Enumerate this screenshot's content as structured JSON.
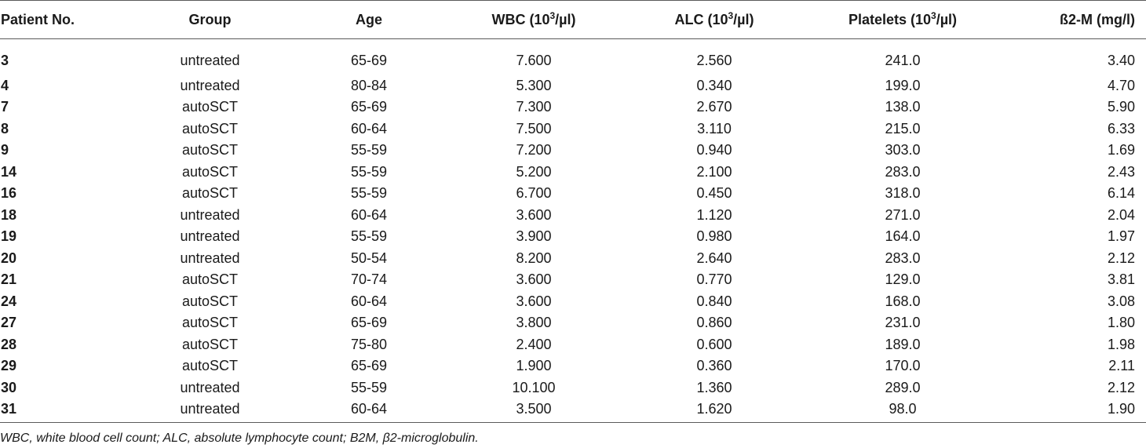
{
  "table": {
    "headers": {
      "patient": "Patient No.",
      "group": "Group",
      "age": "Age",
      "wbc_pre": "WBC (10",
      "wbc_sup": "3",
      "wbc_post": "/µl)",
      "alc_pre": "ALC (10",
      "alc_sup": "3",
      "alc_post": "/µl)",
      "plt_pre": "Platelets (10",
      "plt_sup": "3",
      "plt_post": "/µl)",
      "b2m": "ß2-M (mg/l)"
    },
    "rows": [
      {
        "patient": "3",
        "group": "untreated",
        "age": "65-69",
        "wbc": "7.600",
        "alc": "2.560",
        "platelets": "241.0",
        "b2m": "3.40"
      },
      {
        "patient": "4",
        "group": "untreated",
        "age": "80-84",
        "wbc": "5.300",
        "alc": "0.340",
        "platelets": "199.0",
        "b2m": "4.70"
      },
      {
        "patient": "7",
        "group": "autoSCT",
        "age": "65-69",
        "wbc": "7.300",
        "alc": "2.670",
        "platelets": "138.0",
        "b2m": "5.90"
      },
      {
        "patient": "8",
        "group": "autoSCT",
        "age": "60-64",
        "wbc": "7.500",
        "alc": "3.110",
        "platelets": "215.0",
        "b2m": "6.33"
      },
      {
        "patient": "9",
        "group": "autoSCT",
        "age": "55-59",
        "wbc": "7.200",
        "alc": "0.940",
        "platelets": "303.0",
        "b2m": "1.69"
      },
      {
        "patient": "14",
        "group": "autoSCT",
        "age": "55-59",
        "wbc": "5.200",
        "alc": "2.100",
        "platelets": "283.0",
        "b2m": "2.43"
      },
      {
        "patient": "16",
        "group": "autoSCT",
        "age": "55-59",
        "wbc": "6.700",
        "alc": "0.450",
        "platelets": "318.0",
        "b2m": "6.14"
      },
      {
        "patient": "18",
        "group": "untreated",
        "age": "60-64",
        "wbc": "3.600",
        "alc": "1.120",
        "platelets": "271.0",
        "b2m": "2.04"
      },
      {
        "patient": "19",
        "group": "untreated",
        "age": "55-59",
        "wbc": "3.900",
        "alc": "0.980",
        "platelets": "164.0",
        "b2m": "1.97"
      },
      {
        "patient": "20",
        "group": "untreated",
        "age": "50-54",
        "wbc": "8.200",
        "alc": "2.640",
        "platelets": "283.0",
        "b2m": "2.12"
      },
      {
        "patient": "21",
        "group": "autoSCT",
        "age": "70-74",
        "wbc": "3.600",
        "alc": "0.770",
        "platelets": "129.0",
        "b2m": "3.81"
      },
      {
        "patient": "24",
        "group": "autoSCT",
        "age": "60-64",
        "wbc": "3.600",
        "alc": "0.840",
        "platelets": "168.0",
        "b2m": "3.08"
      },
      {
        "patient": "27",
        "group": "autoSCT",
        "age": "65-69",
        "wbc": "3.800",
        "alc": "0.860",
        "platelets": "231.0",
        "b2m": "1.80"
      },
      {
        "patient": "28",
        "group": "autoSCT",
        "age": "75-80",
        "wbc": "2.400",
        "alc": "0.600",
        "platelets": "189.0",
        "b2m": "1.98"
      },
      {
        "patient": "29",
        "group": "autoSCT",
        "age": "65-69",
        "wbc": "1.900",
        "alc": "0.360",
        "platelets": "170.0",
        "b2m": "2.11"
      },
      {
        "patient": "30",
        "group": "untreated",
        "age": "55-59",
        "wbc": "10.100",
        "alc": "1.360",
        "platelets": "289.0",
        "b2m": "2.12"
      },
      {
        "patient": "31",
        "group": "untreated",
        "age": "60-64",
        "wbc": "3.500",
        "alc": "1.620",
        "platelets": "98.0",
        "b2m": "1.90"
      }
    ]
  },
  "footnote": "WBC, white blood cell count; ALC, absolute lymphocyte count; B2M, β2-microglobulin."
}
